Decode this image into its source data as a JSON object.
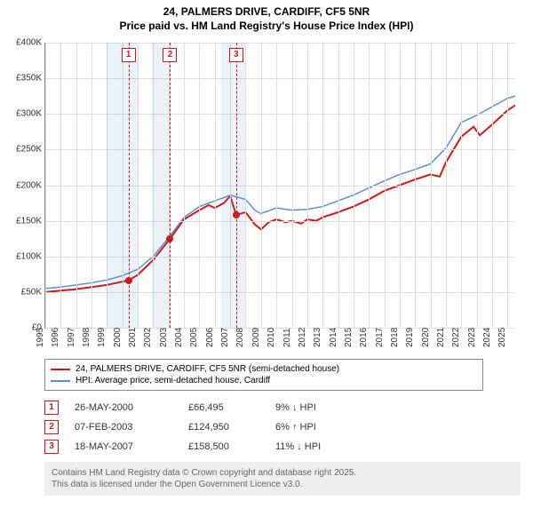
{
  "title_line1": "24, PALMERS DRIVE, CARDIFF, CF5 5NR",
  "title_line2": "Price paid vs. HM Land Registry's House Price Index (HPI)",
  "chart": {
    "type": "line",
    "xlim": [
      1995,
      2025.5
    ],
    "ylim": [
      0,
      400000
    ],
    "ytick_step": 50000,
    "ytick_labels": [
      "£0",
      "£50K",
      "£100K",
      "£150K",
      "£200K",
      "£250K",
      "£300K",
      "£350K",
      "£400K"
    ],
    "xticks": [
      1995,
      1996,
      1997,
      1998,
      1999,
      2000,
      2001,
      2002,
      2003,
      2004,
      2005,
      2006,
      2007,
      2008,
      2009,
      2010,
      2011,
      2012,
      2013,
      2014,
      2015,
      2016,
      2017,
      2018,
      2019,
      2020,
      2021,
      2022,
      2023,
      2024,
      2025
    ],
    "grid_color": "#dddddd",
    "axis_color": "#888888",
    "background_color": "#ffffff",
    "shaded_x_ranges": [
      [
        1999.0,
        2001.0
      ],
      [
        2001.9,
        2003.2
      ],
      [
        2006.4,
        2008.0
      ]
    ],
    "shade_color": "rgba(95,150,210,0.12)",
    "event_lines": [
      {
        "x": 2000.4,
        "label": "1",
        "color": "#d01818"
      },
      {
        "x": 2003.1,
        "label": "2",
        "color": "#d01818"
      },
      {
        "x": 2007.38,
        "label": "3",
        "color": "#d01818"
      }
    ],
    "series": [
      {
        "name": "24, PALMERS DRIVE, CARDIFF, CF5 5NR (semi-detached house)",
        "color": "#d01818",
        "line_width": 2,
        "points": [
          [
            1995.0,
            50000
          ],
          [
            1996.0,
            52000
          ],
          [
            1997.0,
            54000
          ],
          [
            1998.0,
            57000
          ],
          [
            1999.0,
            60000
          ],
          [
            2000.4,
            66495
          ],
          [
            2001.0,
            74000
          ],
          [
            2002.0,
            95000
          ],
          [
            2003.1,
            124950
          ],
          [
            2004.0,
            152000
          ],
          [
            2005.0,
            165000
          ],
          [
            2005.6,
            172000
          ],
          [
            2006.0,
            168000
          ],
          [
            2006.6,
            175000
          ],
          [
            2007.0,
            185000
          ],
          [
            2007.38,
            158500
          ],
          [
            2008.0,
            162000
          ],
          [
            2008.6,
            145000
          ],
          [
            2009.0,
            138000
          ],
          [
            2009.5,
            148000
          ],
          [
            2010.0,
            152000
          ],
          [
            2010.6,
            148000
          ],
          [
            2011.0,
            150000
          ],
          [
            2011.6,
            146000
          ],
          [
            2012.0,
            152000
          ],
          [
            2012.6,
            150000
          ],
          [
            2013.0,
            155000
          ],
          [
            2014.0,
            162000
          ],
          [
            2015.0,
            170000
          ],
          [
            2016.0,
            180000
          ],
          [
            2017.0,
            192000
          ],
          [
            2018.0,
            200000
          ],
          [
            2019.0,
            208000
          ],
          [
            2020.0,
            215000
          ],
          [
            2020.6,
            212000
          ],
          [
            2021.0,
            232000
          ],
          [
            2022.0,
            268000
          ],
          [
            2022.8,
            282000
          ],
          [
            2023.2,
            270000
          ],
          [
            2024.0,
            285000
          ],
          [
            2025.0,
            305000
          ],
          [
            2025.5,
            312000
          ]
        ],
        "sale_dots": [
          [
            2000.4,
            66495
          ],
          [
            2003.1,
            124950
          ],
          [
            2007.38,
            158500
          ]
        ]
      },
      {
        "name": "HPI: Average price, semi-detached house, Cardiff",
        "color": "#5a8fd6",
        "line_width": 1.5,
        "points": [
          [
            1995.0,
            55000
          ],
          [
            1996.0,
            57000
          ],
          [
            1997.0,
            60000
          ],
          [
            1998.0,
            63000
          ],
          [
            1999.0,
            67000
          ],
          [
            2000.0,
            73000
          ],
          [
            2001.0,
            82000
          ],
          [
            2002.0,
            100000
          ],
          [
            2003.0,
            126000
          ],
          [
            2004.0,
            155000
          ],
          [
            2005.0,
            170000
          ],
          [
            2006.0,
            178000
          ],
          [
            2007.0,
            186000
          ],
          [
            2008.0,
            180000
          ],
          [
            2008.6,
            165000
          ],
          [
            2009.0,
            160000
          ],
          [
            2010.0,
            168000
          ],
          [
            2011.0,
            165000
          ],
          [
            2012.0,
            166000
          ],
          [
            2013.0,
            170000
          ],
          [
            2014.0,
            178000
          ],
          [
            2015.0,
            186000
          ],
          [
            2016.0,
            196000
          ],
          [
            2017.0,
            206000
          ],
          [
            2018.0,
            215000
          ],
          [
            2019.0,
            222000
          ],
          [
            2020.0,
            230000
          ],
          [
            2021.0,
            252000
          ],
          [
            2022.0,
            288000
          ],
          [
            2023.0,
            298000
          ],
          [
            2024.0,
            310000
          ],
          [
            2025.0,
            322000
          ],
          [
            2025.5,
            325000
          ]
        ]
      }
    ]
  },
  "legend": {
    "items": [
      {
        "label": "24, PALMERS DRIVE, CARDIFF, CF5 5NR (semi-detached house)",
        "color": "#d01818"
      },
      {
        "label": "HPI: Average price, semi-detached house, Cardiff",
        "color": "#5a8fd6"
      }
    ]
  },
  "transactions": [
    {
      "n": "1",
      "date": "26-MAY-2000",
      "price": "£66,495",
      "delta": "9% ↓ HPI"
    },
    {
      "n": "2",
      "date": "07-FEB-2003",
      "price": "£124,950",
      "delta": "6% ↑ HPI"
    },
    {
      "n": "3",
      "date": "18-MAY-2007",
      "price": "£158,500",
      "delta": "11% ↓ HPI"
    }
  ],
  "footer_line1": "Contains HM Land Registry data © Crown copyright and database right 2025.",
  "footer_line2": "This data is licensed under the Open Government Licence v3.0."
}
